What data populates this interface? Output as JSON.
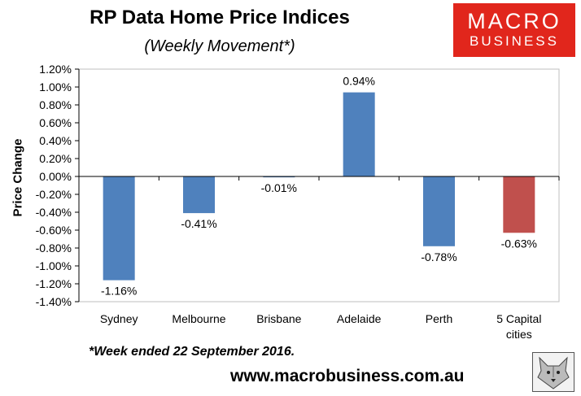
{
  "header": {
    "title": "RP Data Home Price Indices",
    "subtitle": "(Weekly Movement*)"
  },
  "logo": {
    "line1": "MACRO",
    "line2": "BUSINESS",
    "color": "#e1261c"
  },
  "chart_data": {
    "type": "bar",
    "title": "RP Data Home Price Indices",
    "subtitle": "(Weekly Movement*)",
    "xlabel": "",
    "ylabel": "Price Change",
    "ylim": [
      -1.4,
      1.2
    ],
    "ytick_step": 0.2,
    "grid": false,
    "categories": [
      "Sydney",
      "Melbourne",
      "Brisbane",
      "Adelaide",
      "Perth",
      "5 Capital cities"
    ],
    "values": [
      -1.16,
      -0.41,
      -0.01,
      0.94,
      -0.78,
      -0.63
    ],
    "data_labels": [
      "-1.16%",
      "-0.41%",
      "-0.01%",
      "0.94%",
      "-0.78%",
      "-0.63%"
    ],
    "yticks": [
      "1.20%",
      "1.00%",
      "0.80%",
      "0.60%",
      "0.40%",
      "0.20%",
      "0.00%",
      "-0.20%",
      "-0.40%",
      "-0.60%",
      "-0.80%",
      "-1.00%",
      "-1.20%",
      "-1.40%"
    ],
    "bar_colors": [
      "#4f81bd",
      "#4f81bd",
      "#4f81bd",
      "#4f81bd",
      "#4f81bd",
      "#c0504d"
    ]
  },
  "footer": {
    "footnote": "*Week ended 22 September 2016.",
    "url": "www.macrobusiness.com.au",
    "wolf_icon": "wolf-logo-icon"
  }
}
